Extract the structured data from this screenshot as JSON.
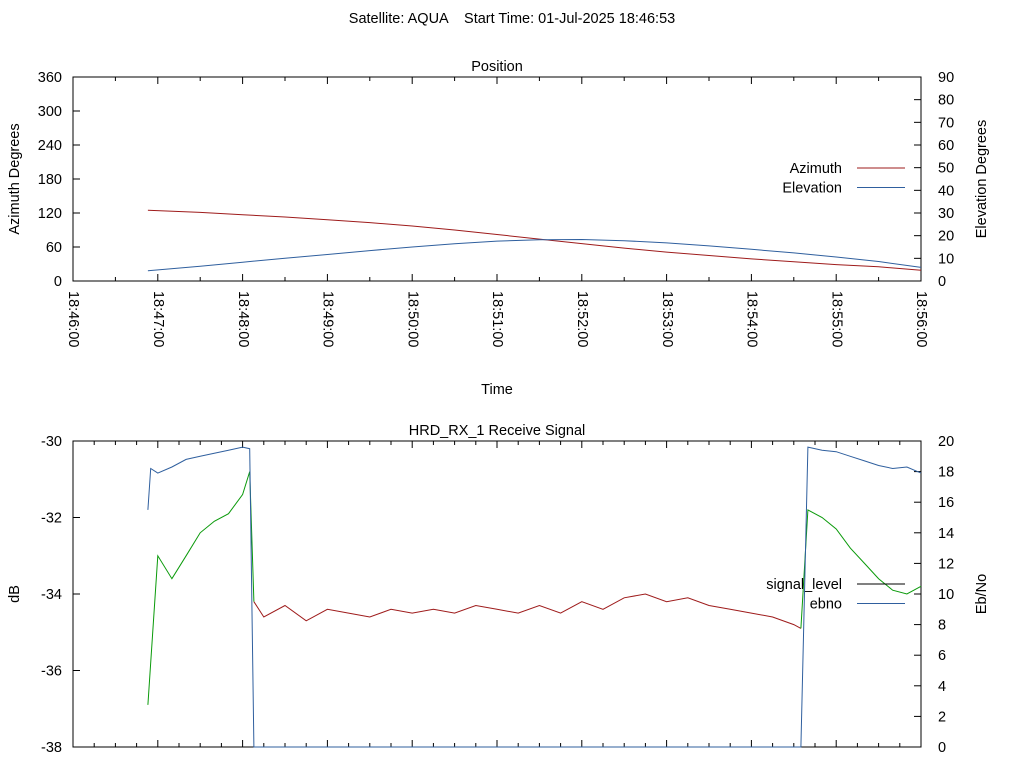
{
  "header": {
    "title": "Satellite: AQUA    Start Time: 01-Jul-2025 18:46:53"
  },
  "chart_data": [
    {
      "type": "line",
      "title": "Position",
      "xlabel": "Time",
      "ylabel": "Azimuth Degrees",
      "y2label": "Elevation Degrees",
      "x_ticks": [
        "18:46:00",
        "18:47:00",
        "18:48:00",
        "18:49:00",
        "18:50:00",
        "18:51:00",
        "18:52:00",
        "18:53:00",
        "18:54:00",
        "18:55:00",
        "18:56:00"
      ],
      "xlim": [
        "18:46:00",
        "18:56:00"
      ],
      "ylim": [
        0,
        360
      ],
      "y_ticks": [
        0,
        60,
        120,
        180,
        240,
        300,
        360
      ],
      "y2lim": [
        0,
        90
      ],
      "y2_ticks": [
        0,
        10,
        20,
        30,
        40,
        50,
        60,
        70,
        80,
        90
      ],
      "legend_position": "right",
      "grid": false,
      "series": [
        {
          "name": "Azimuth",
          "axis": "y",
          "color": "#9e1b1b",
          "x": [
            "18:46:53",
            "18:47:30",
            "18:48:00",
            "18:48:30",
            "18:49:00",
            "18:49:30",
            "18:50:00",
            "18:50:30",
            "18:51:00",
            "18:51:30",
            "18:52:00",
            "18:52:30",
            "18:53:00",
            "18:53:30",
            "18:54:00",
            "18:54:30",
            "18:55:00",
            "18:55:30",
            "18:56:00"
          ],
          "values": [
            125,
            121,
            117,
            113,
            108,
            103,
            97,
            90,
            82,
            74,
            66,
            58,
            51,
            45,
            39,
            34,
            29,
            25,
            19
          ]
        },
        {
          "name": "Elevation",
          "axis": "y2",
          "color": "#2f5f9e",
          "x": [
            "18:46:53",
            "18:47:30",
            "18:48:00",
            "18:48:30",
            "18:49:00",
            "18:49:30",
            "18:50:00",
            "18:50:30",
            "18:51:00",
            "18:51:30",
            "18:52:00",
            "18:52:30",
            "18:53:00",
            "18:53:30",
            "18:54:00",
            "18:54:30",
            "18:55:00",
            "18:55:30",
            "18:56:00"
          ],
          "values": [
            4.5,
            6.5,
            8.3,
            10.0,
            11.7,
            13.4,
            15.0,
            16.4,
            17.6,
            18.2,
            18.3,
            17.8,
            16.8,
            15.5,
            14.0,
            12.4,
            10.6,
            8.6,
            6.0
          ]
        }
      ]
    },
    {
      "type": "line",
      "title": "HRD_RX_1 Receive Signal",
      "xlabel": "",
      "ylabel": "dB",
      "y2label": "Eb/No",
      "xlim": [
        "18:46:00",
        "18:56:00"
      ],
      "ylim": [
        -38,
        -30
      ],
      "y_ticks": [
        -38,
        -36,
        -34,
        -32,
        -30
      ],
      "y2lim": [
        0,
        20
      ],
      "y2_ticks": [
        0,
        2,
        4,
        6,
        8,
        10,
        12,
        14,
        16,
        18,
        20
      ],
      "legend_position": "right",
      "grid": false,
      "series": [
        {
          "name": "signal_level",
          "legend_color": "#000000",
          "axis": "y",
          "color": "#0a9a0a",
          "color_segments": [
            {
              "from": "18:46:53",
              "to": "18:48:08",
              "color": "#0a9a0a"
            },
            {
              "from": "18:48:08",
              "to": "18:54:35",
              "color": "#9e1b1b"
            },
            {
              "from": "18:54:35",
              "to": "18:56:00",
              "color": "#0a9a0a"
            }
          ],
          "x": [
            "18:46:53",
            "18:47:00",
            "18:47:10",
            "18:47:20",
            "18:47:30",
            "18:47:40",
            "18:47:50",
            "18:48:00",
            "18:48:05",
            "18:48:08",
            "18:48:15",
            "18:48:30",
            "18:48:45",
            "18:49:00",
            "18:49:15",
            "18:49:30",
            "18:49:45",
            "18:50:00",
            "18:50:15",
            "18:50:30",
            "18:50:45",
            "18:51:00",
            "18:51:15",
            "18:51:30",
            "18:51:45",
            "18:52:00",
            "18:52:15",
            "18:52:30",
            "18:52:45",
            "18:53:00",
            "18:53:15",
            "18:53:30",
            "18:53:45",
            "18:54:00",
            "18:54:15",
            "18:54:30",
            "18:54:35",
            "18:54:40",
            "18:54:50",
            "18:55:00",
            "18:55:10",
            "18:55:20",
            "18:55:30",
            "18:55:40",
            "18:55:50",
            "18:56:00"
          ],
          "values": [
            -36.9,
            -33.0,
            -33.6,
            -33.0,
            -32.4,
            -32.1,
            -31.9,
            -31.4,
            -30.8,
            -34.2,
            -34.6,
            -34.3,
            -34.7,
            -34.4,
            -34.5,
            -34.6,
            -34.4,
            -34.5,
            -34.4,
            -34.5,
            -34.3,
            -34.4,
            -34.5,
            -34.3,
            -34.5,
            -34.2,
            -34.4,
            -34.1,
            -34.0,
            -34.2,
            -34.1,
            -34.3,
            -34.4,
            -34.5,
            -34.6,
            -34.8,
            -34.9,
            -31.8,
            -32.0,
            -32.3,
            -32.8,
            -33.2,
            -33.6,
            -33.9,
            -34.0,
            -33.8
          ]
        },
        {
          "name": "ebno",
          "axis": "y2",
          "color": "#2f5f9e",
          "x": [
            "18:46:53",
            "18:46:55",
            "18:47:00",
            "18:47:10",
            "18:47:20",
            "18:47:30",
            "18:47:40",
            "18:47:50",
            "18:48:00",
            "18:48:05",
            "18:48:08",
            "18:48:10",
            "18:54:34",
            "18:54:35",
            "18:54:40",
            "18:54:50",
            "18:55:00",
            "18:55:10",
            "18:55:20",
            "18:55:30",
            "18:55:40",
            "18:55:50",
            "18:56:00"
          ],
          "values": [
            15.5,
            18.2,
            17.9,
            18.3,
            18.8,
            19.0,
            19.2,
            19.4,
            19.6,
            19.5,
            0.0,
            0.0,
            0.0,
            0.0,
            19.6,
            19.4,
            19.3,
            19.0,
            18.7,
            18.4,
            18.2,
            18.3,
            17.9
          ]
        }
      ]
    }
  ]
}
